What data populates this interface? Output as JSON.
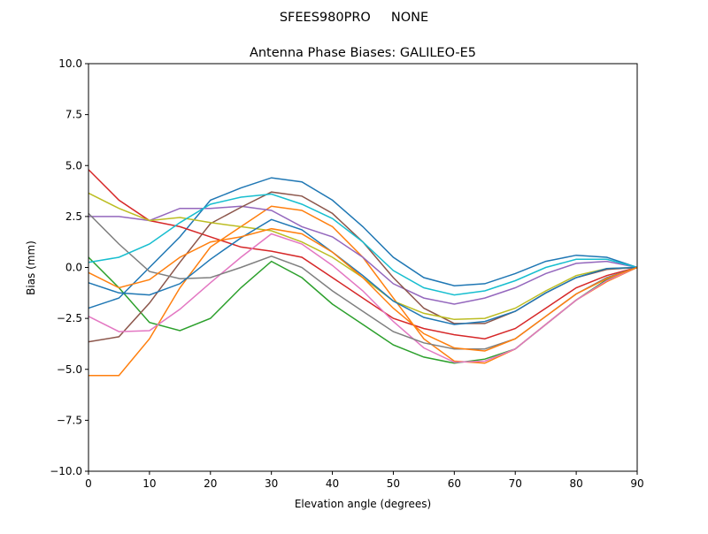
{
  "chart_data": {
    "type": "line",
    "suptitle": "SFEES980PRO     NONE",
    "title": "Antenna Phase Biases: GALILEO-E5",
    "xlabel": "Elevation angle (degrees)",
    "ylabel": "Bias (mm)",
    "xlim": [
      0,
      90
    ],
    "ylim": [
      -10,
      10
    ],
    "xticks": [
      0,
      10,
      20,
      30,
      40,
      50,
      60,
      70,
      80,
      90
    ],
    "xtick_labels": [
      "0",
      "10",
      "20",
      "30",
      "40",
      "50",
      "60",
      "70",
      "80",
      "90"
    ],
    "yticks": [
      -10,
      -7.5,
      -5,
      -2.5,
      0,
      2.5,
      5,
      7.5,
      10
    ],
    "ytick_labels": [
      "−10.0",
      "−7.5",
      "−5.0",
      "−2.5",
      "0.0",
      "2.5",
      "5.0",
      "7.5",
      "10.0"
    ],
    "grid": false,
    "colors": [
      "#1f77b4",
      "#ff7f0e",
      "#2ca02c",
      "#d62728",
      "#9467bd",
      "#8c564b",
      "#e377c2",
      "#7f7f7f",
      "#bcbd22",
      "#17becf"
    ],
    "x": [
      0,
      5,
      10,
      15,
      20,
      25,
      30,
      35,
      40,
      45,
      50,
      55,
      60,
      65,
      70,
      75,
      80,
      85,
      90
    ],
    "series": [
      {
        "values": [
          -2.0,
          -1.5,
          0.0,
          1.5,
          3.3,
          3.9,
          4.4,
          4.2,
          3.3,
          2.0,
          0.5,
          -0.5,
          -0.9,
          -0.8,
          -0.3,
          0.3,
          0.6,
          0.5,
          0
        ]
      },
      {
        "values": [
          -5.3,
          -5.3,
          -3.5,
          -1.0,
          1.0,
          2.0,
          3.0,
          2.8,
          2.0,
          0.5,
          -1.5,
          -3.5,
          -4.6,
          -4.7,
          -4.0,
          -2.8,
          -1.6,
          -0.7,
          0
        ]
      },
      {
        "values": [
          0.5,
          -1.0,
          -2.7,
          -3.1,
          -2.5,
          -1.0,
          0.3,
          -0.5,
          -1.8,
          -2.8,
          -3.8,
          -4.4,
          -4.7,
          -4.5,
          -4.0,
          -2.8,
          -1.6,
          -0.6,
          0
        ]
      },
      {
        "values": [
          4.8,
          3.3,
          2.3,
          2.0,
          1.5,
          1.0,
          0.8,
          0.5,
          -0.5,
          -1.5,
          -2.5,
          -3.0,
          -3.3,
          -3.5,
          -3.0,
          -2.0,
          -1.0,
          -0.4,
          0
        ]
      },
      {
        "values": [
          2.5,
          2.5,
          2.3,
          2.9,
          2.9,
          3.0,
          2.8,
          2.0,
          1.5,
          0.5,
          -0.8,
          -1.5,
          -1.8,
          -1.5,
          -1.0,
          -0.3,
          0.2,
          0.3,
          0
        ]
      },
      {
        "values": [
          -3.65,
          -3.4,
          -1.75,
          0.25,
          2.15,
          2.95,
          3.7,
          3.5,
          2.65,
          1.25,
          -0.5,
          -2.0,
          -2.75,
          -2.75,
          -2.15,
          -1.25,
          -0.5,
          -0.1,
          0
        ]
      },
      {
        "values": [
          -2.4,
          -3.15,
          -3.1,
          -2.05,
          -0.75,
          0.5,
          1.65,
          1.15,
          0.1,
          -1.15,
          -2.65,
          -3.95,
          -4.65,
          -4.6,
          -4.0,
          -2.8,
          -1.6,
          -0.65,
          0
        ]
      },
      {
        "values": [
          2.65,
          1.15,
          -0.2,
          -0.55,
          -0.5,
          0.0,
          0.55,
          0.0,
          -1.15,
          -2.15,
          -3.15,
          -3.7,
          -4.0,
          -4.0,
          -3.5,
          -2.4,
          -1.3,
          -0.5,
          0
        ]
      },
      {
        "values": [
          3.65,
          2.9,
          2.3,
          2.45,
          2.2,
          2.0,
          1.8,
          1.25,
          0.5,
          -0.5,
          -1.65,
          -2.25,
          -2.55,
          -2.5,
          -2.0,
          -1.15,
          -0.4,
          -0.05,
          0
        ]
      },
      {
        "values": [
          0.25,
          0.5,
          1.15,
          2.2,
          3.1,
          3.45,
          3.6,
          3.1,
          2.4,
          1.25,
          -0.15,
          -1.0,
          -1.35,
          -1.15,
          -0.65,
          0.0,
          0.4,
          0.4,
          0
        ]
      },
      {
        "values": [
          -0.75,
          -1.25,
          -1.35,
          -0.8,
          0.4,
          1.45,
          2.35,
          1.85,
          0.75,
          -0.4,
          -1.65,
          -2.45,
          -2.8,
          -2.65,
          -2.15,
          -1.25,
          -0.5,
          -0.05,
          0
        ]
      },
      {
        "values": [
          -0.25,
          -1.0,
          -0.6,
          0.5,
          1.25,
          1.5,
          1.9,
          1.65,
          0.75,
          -0.5,
          -2.0,
          -3.25,
          -3.95,
          -4.1,
          -3.5,
          -2.4,
          -1.3,
          -0.55,
          0
        ]
      }
    ]
  }
}
